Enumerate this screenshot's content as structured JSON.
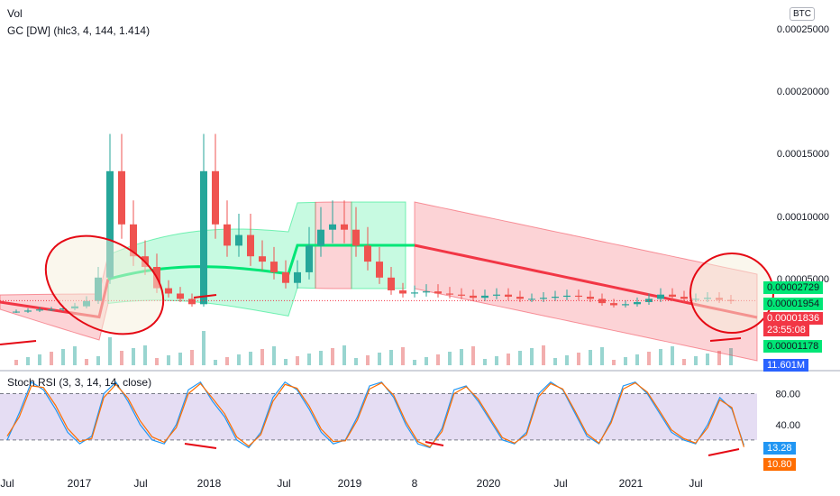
{
  "indicators": {
    "vol_label": "Vol",
    "gc_label": "GC [DW] (hlc3, 4, 144, 1.414)",
    "stoch_label": "Stoch RSI (3, 3, 14, 14, close)"
  },
  "currency_label": "BTC",
  "price_axis": {
    "ticks": [
      "0.00025000",
      "0.00020000",
      "0.00015000",
      "0.00010000",
      "0.00005000"
    ]
  },
  "price_tags": [
    {
      "text": "0.00002729",
      "color": "#00e676",
      "text_color": "#131722"
    },
    {
      "text": "0.00001954",
      "color": "#00e676",
      "text_color": "#131722"
    },
    {
      "text": "0.00001836",
      "color": "#f23645",
      "text_color": "#ffffff"
    },
    {
      "text": "23:55:08",
      "color": "#f23645",
      "text_color": "#ffffff"
    },
    {
      "text": "0.00001178",
      "color": "#00e676",
      "text_color": "#131722"
    },
    {
      "text": "11.601M",
      "color": "#2962ff",
      "text_color": "#ffffff"
    }
  ],
  "stoch_axis": {
    "ticks": [
      "80.00",
      "40.00"
    ]
  },
  "stoch_tags": [
    {
      "text": "13.28",
      "color": "#2196f3",
      "text_color": "#ffffff"
    },
    {
      "text": "10.80",
      "color": "#ff6d00",
      "text_color": "#ffffff"
    }
  ],
  "time_axis": {
    "labels": [
      "Jul",
      "2017",
      "Jul",
      "2018",
      "Jul",
      "2019",
      "8",
      "2020",
      "Jul",
      "2021",
      "Jul"
    ]
  },
  "colors": {
    "up": "#26a69a",
    "down": "#ef5350",
    "band_green": "#00e676",
    "band_pink": "#f23645",
    "stoch_k": "#2196f3",
    "stoch_d": "#ff6d00",
    "stoch_band": "#7e57c2",
    "annotation": "#e50914"
  },
  "chart_data": [
    {
      "type": "candlestick",
      "title": "",
      "currency": "BTC",
      "ylim": [
        0,
        0.00026
      ],
      "x": [
        "2016-09",
        "2016-10",
        "2016-11",
        "2016-12",
        "2017-01",
        "2017-02",
        "2017-03",
        "2017-04",
        "2017-05",
        "2017-06",
        "2017-07",
        "2017-08",
        "2017-09",
        "2017-10",
        "2017-11",
        "2017-12",
        "2018-01",
        "2018-02",
        "2018-03",
        "2018-04",
        "2018-05",
        "2018-06",
        "2018-07",
        "2018-08",
        "2018-09",
        "2018-10",
        "2018-11",
        "2018-12",
        "2019-01",
        "2019-02",
        "2019-03",
        "2019-04",
        "2019-05",
        "2019-06",
        "2019-07",
        "2019-08",
        "2019-09",
        "2019-10",
        "2019-11",
        "2019-12",
        "2020-01",
        "2020-02",
        "2020-03",
        "2020-04",
        "2020-05",
        "2020-06",
        "2020-07",
        "2020-08",
        "2020-09",
        "2020-10",
        "2020-11",
        "2020-12",
        "2021-01",
        "2021-02",
        "2021-03",
        "2021-04",
        "2021-05",
        "2021-06",
        "2021-07",
        "2021-08",
        "2021-09",
        "2021-10"
      ],
      "close": [
        8e-06,
        9e-06,
        1e-05,
        1e-05,
        1.1e-05,
        1.3e-05,
        1.8e-05,
        4e-05,
        0.00014,
        9e-05,
        6e-05,
        5e-05,
        3e-05,
        2.5e-05,
        2e-05,
        1.5e-05,
        0.00014,
        9e-05,
        7e-05,
        8e-05,
        6e-05,
        5.5e-05,
        4.5e-05,
        3.5e-05,
        4.5e-05,
        7e-05,
        8.5e-05,
        9e-05,
        8.5e-05,
        7e-05,
        5.5e-05,
        4e-05,
        2.8e-05,
        2.5e-05,
        2.6e-05,
        2.7e-05,
        2.5e-05,
        2.4e-05,
        2.3e-05,
        2.1e-05,
        2.3e-05,
        2.4e-05,
        2.2e-05,
        2e-05,
        2e-05,
        2.1e-05,
        2.2e-05,
        2.3e-05,
        2.2e-05,
        2e-05,
        1.6e-05,
        1.4e-05,
        1.5e-05,
        1.7e-05,
        2e-05,
        2.4e-05,
        2.2e-05,
        2e-05,
        2e-05,
        2.1e-05,
        1.9e-05,
        1.8e-05
      ]
    },
    {
      "type": "line",
      "title": "Stoch RSI (3, 3, 14, 14, close)",
      "ylim": [
        0,
        100
      ],
      "levels": [
        80,
        20
      ],
      "series": [
        {
          "name": "K",
          "values": [
            20,
            55,
            95,
            85,
            60,
            30,
            15,
            25,
            80,
            95,
            70,
            40,
            20,
            15,
            40,
            85,
            95,
            70,
            50,
            20,
            10,
            30,
            75,
            95,
            85,
            60,
            30,
            15,
            20,
            50,
            90,
            95,
            75,
            40,
            15,
            10,
            35,
            85,
            90,
            70,
            45,
            20,
            15,
            30,
            80,
            95,
            85,
            55,
            25,
            15,
            45,
            90,
            95,
            80,
            55,
            30,
            20,
            15,
            40,
            75,
            60,
            13.28
          ]
        },
        {
          "name": "D",
          "values": [
            25,
            50,
            90,
            88,
            65,
            35,
            18,
            22,
            75,
            92,
            74,
            45,
            24,
            17,
            36,
            80,
            93,
            74,
            54,
            24,
            12,
            27,
            70,
            92,
            87,
            64,
            34,
            18,
            19,
            46,
            86,
            94,
            78,
            44,
            18,
            11,
            31,
            80,
            89,
            73,
            48,
            23,
            16,
            27,
            76,
            93,
            86,
            58,
            28,
            16,
            42,
            86,
            94,
            82,
            58,
            33,
            22,
            16,
            36,
            72,
            62,
            10.8
          ]
        }
      ]
    }
  ]
}
